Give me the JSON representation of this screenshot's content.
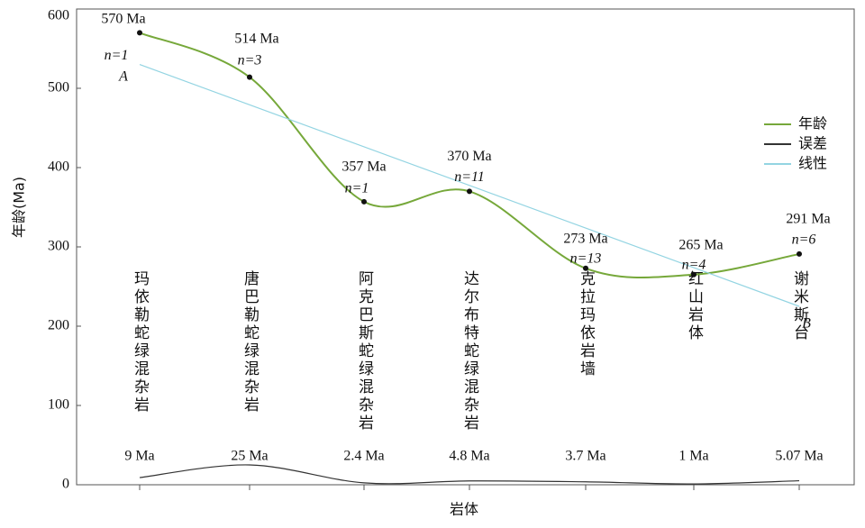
{
  "chart_data": {
    "type": "line",
    "categories": [
      "玛依勒蛇绿混杂岩",
      "唐巴勒蛇绿混杂岩",
      "阿克巴斯蛇绿混杂岩",
      "达尔布特蛇绿混杂岩",
      "克拉玛依岩墙",
      "红山岩体",
      "谢米斯台"
    ],
    "series": [
      {
        "name": "年龄",
        "color": "#76a83a",
        "values": [
          570,
          514,
          357,
          370,
          273,
          265,
          291
        ],
        "value_labels": [
          "570 Ma",
          "514 Ma",
          "357 Ma",
          "370 Ma",
          "273 Ma",
          "265 Ma",
          "291 Ma"
        ],
        "n_labels": [
          "n=1",
          "n=3",
          "n=1",
          "n=11",
          "n=13",
          "n=4",
          "n=6"
        ]
      },
      {
        "name": "误差",
        "color": "#333333",
        "values": [
          9,
          25,
          2.4,
          4.8,
          3.7,
          1,
          5.07
        ],
        "value_labels": [
          "9 Ma",
          "25 Ma",
          "2.4 Ma",
          "4.8 Ma",
          "3.7 Ma",
          "1 Ma",
          "5.07 Ma"
        ]
      },
      {
        "name": "线性",
        "color": "#93d4e2",
        "values": [
          530,
          479,
          428,
          378,
          327,
          276,
          225
        ]
      }
    ],
    "annotations": [
      "A",
      "B"
    ],
    "xlabel": "岩体",
    "ylabel": "年龄(Ma)",
    "ylim": [
      0,
      600
    ],
    "yticks": [
      0,
      100,
      200,
      300,
      400,
      500,
      600
    ],
    "legend": "right"
  }
}
